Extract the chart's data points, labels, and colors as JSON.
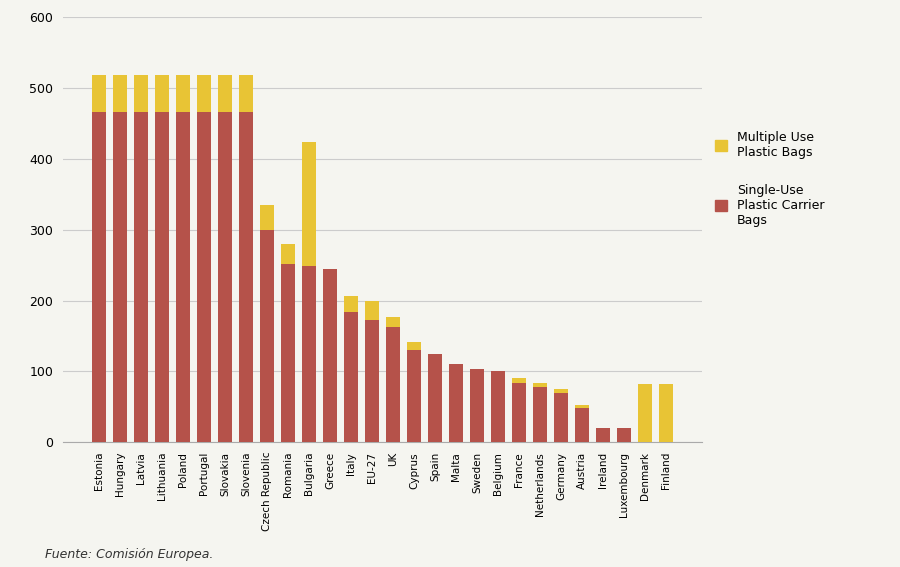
{
  "categories": [
    "Estonia",
    "Hungary",
    "Latvia",
    "Lithuania",
    "Poland",
    "Portugal",
    "Slovakia",
    "Slovenia",
    "Czech Republic",
    "Romania",
    "Bulgaria",
    "Greece",
    "Italy",
    "EU-27",
    "UK",
    "Cyprus",
    "Spain",
    "Malta",
    "Sweden",
    "Belgium",
    "France",
    "Netherlands",
    "Germany",
    "Austria",
    "Ireland",
    "Luxembourg",
    "Denmark",
    "Finland"
  ],
  "single_use": [
    466,
    466,
    466,
    466,
    466,
    466,
    466,
    466,
    300,
    252,
    248,
    244,
    184,
    172,
    162,
    130,
    125,
    110,
    103,
    100,
    83,
    78,
    70,
    48,
    20,
    20,
    0,
    0
  ],
  "multiple_use": [
    52,
    52,
    52,
    52,
    52,
    52,
    52,
    52,
    35,
    28,
    175,
    0,
    22,
    28,
    15,
    12,
    0,
    0,
    0,
    0,
    8,
    5,
    5,
    5,
    0,
    0,
    82,
    82
  ],
  "single_use_color": "#b5524a",
  "multiple_use_color": "#e8c435",
  "background_color": "#f5f5f0",
  "ylim": [
    0,
    600
  ],
  "yticks": [
    0,
    100,
    200,
    300,
    400,
    500,
    600
  ],
  "legend_label_multiple": "Multiple Use\nPlastic Bags",
  "legend_label_single": "Single-Use\nPlastic Carrier\nBags",
  "source_text": "Fuente: Comisión Europea.",
  "bar_width": 0.65
}
